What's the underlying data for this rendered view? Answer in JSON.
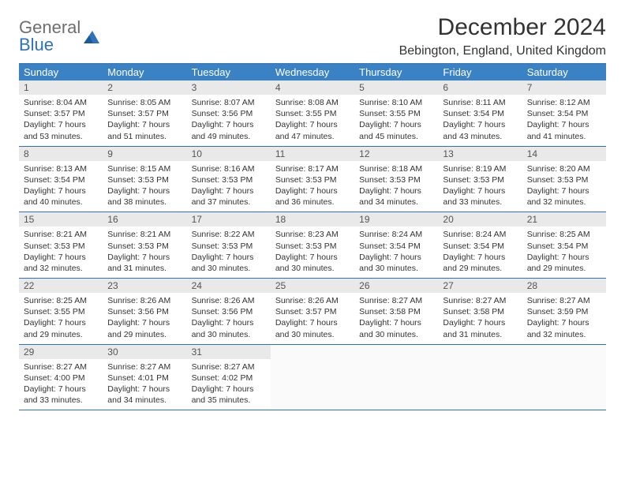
{
  "logo": {
    "line1": "General",
    "line2": "Blue"
  },
  "title": "December 2024",
  "location": "Bebington, England, United Kingdom",
  "colors": {
    "header_bg": "#3b82c4",
    "header_text": "#ffffff",
    "border": "#2f72b9",
    "daynum_bg": "#e9e9e9",
    "text": "#333333",
    "logo_gray": "#6e6e6e",
    "logo_blue": "#2f72b9"
  },
  "dow": [
    "Sunday",
    "Monday",
    "Tuesday",
    "Wednesday",
    "Thursday",
    "Friday",
    "Saturday"
  ],
  "weeks": [
    [
      {
        "n": "1",
        "sr": "8:04 AM",
        "ss": "3:57 PM",
        "dl": "7 hours and 53 minutes."
      },
      {
        "n": "2",
        "sr": "8:05 AM",
        "ss": "3:57 PM",
        "dl": "7 hours and 51 minutes."
      },
      {
        "n": "3",
        "sr": "8:07 AM",
        "ss": "3:56 PM",
        "dl": "7 hours and 49 minutes."
      },
      {
        "n": "4",
        "sr": "8:08 AM",
        "ss": "3:55 PM",
        "dl": "7 hours and 47 minutes."
      },
      {
        "n": "5",
        "sr": "8:10 AM",
        "ss": "3:55 PM",
        "dl": "7 hours and 45 minutes."
      },
      {
        "n": "6",
        "sr": "8:11 AM",
        "ss": "3:54 PM",
        "dl": "7 hours and 43 minutes."
      },
      {
        "n": "7",
        "sr": "8:12 AM",
        "ss": "3:54 PM",
        "dl": "7 hours and 41 minutes."
      }
    ],
    [
      {
        "n": "8",
        "sr": "8:13 AM",
        "ss": "3:54 PM",
        "dl": "7 hours and 40 minutes."
      },
      {
        "n": "9",
        "sr": "8:15 AM",
        "ss": "3:53 PM",
        "dl": "7 hours and 38 minutes."
      },
      {
        "n": "10",
        "sr": "8:16 AM",
        "ss": "3:53 PM",
        "dl": "7 hours and 37 minutes."
      },
      {
        "n": "11",
        "sr": "8:17 AM",
        "ss": "3:53 PM",
        "dl": "7 hours and 36 minutes."
      },
      {
        "n": "12",
        "sr": "8:18 AM",
        "ss": "3:53 PM",
        "dl": "7 hours and 34 minutes."
      },
      {
        "n": "13",
        "sr": "8:19 AM",
        "ss": "3:53 PM",
        "dl": "7 hours and 33 minutes."
      },
      {
        "n": "14",
        "sr": "8:20 AM",
        "ss": "3:53 PM",
        "dl": "7 hours and 32 minutes."
      }
    ],
    [
      {
        "n": "15",
        "sr": "8:21 AM",
        "ss": "3:53 PM",
        "dl": "7 hours and 32 minutes."
      },
      {
        "n": "16",
        "sr": "8:21 AM",
        "ss": "3:53 PM",
        "dl": "7 hours and 31 minutes."
      },
      {
        "n": "17",
        "sr": "8:22 AM",
        "ss": "3:53 PM",
        "dl": "7 hours and 30 minutes."
      },
      {
        "n": "18",
        "sr": "8:23 AM",
        "ss": "3:53 PM",
        "dl": "7 hours and 30 minutes."
      },
      {
        "n": "19",
        "sr": "8:24 AM",
        "ss": "3:54 PM",
        "dl": "7 hours and 30 minutes."
      },
      {
        "n": "20",
        "sr": "8:24 AM",
        "ss": "3:54 PM",
        "dl": "7 hours and 29 minutes."
      },
      {
        "n": "21",
        "sr": "8:25 AM",
        "ss": "3:54 PM",
        "dl": "7 hours and 29 minutes."
      }
    ],
    [
      {
        "n": "22",
        "sr": "8:25 AM",
        "ss": "3:55 PM",
        "dl": "7 hours and 29 minutes."
      },
      {
        "n": "23",
        "sr": "8:26 AM",
        "ss": "3:56 PM",
        "dl": "7 hours and 29 minutes."
      },
      {
        "n": "24",
        "sr": "8:26 AM",
        "ss": "3:56 PM",
        "dl": "7 hours and 30 minutes."
      },
      {
        "n": "25",
        "sr": "8:26 AM",
        "ss": "3:57 PM",
        "dl": "7 hours and 30 minutes."
      },
      {
        "n": "26",
        "sr": "8:27 AM",
        "ss": "3:58 PM",
        "dl": "7 hours and 30 minutes."
      },
      {
        "n": "27",
        "sr": "8:27 AM",
        "ss": "3:58 PM",
        "dl": "7 hours and 31 minutes."
      },
      {
        "n": "28",
        "sr": "8:27 AM",
        "ss": "3:59 PM",
        "dl": "7 hours and 32 minutes."
      }
    ],
    [
      {
        "n": "29",
        "sr": "8:27 AM",
        "ss": "4:00 PM",
        "dl": "7 hours and 33 minutes."
      },
      {
        "n": "30",
        "sr": "8:27 AM",
        "ss": "4:01 PM",
        "dl": "7 hours and 34 minutes."
      },
      {
        "n": "31",
        "sr": "8:27 AM",
        "ss": "4:02 PM",
        "dl": "7 hours and 35 minutes."
      },
      {
        "empty": true
      },
      {
        "empty": true
      },
      {
        "empty": true
      },
      {
        "empty": true
      }
    ]
  ],
  "labels": {
    "sunrise": "Sunrise:",
    "sunset": "Sunset:",
    "daylight": "Daylight:"
  }
}
